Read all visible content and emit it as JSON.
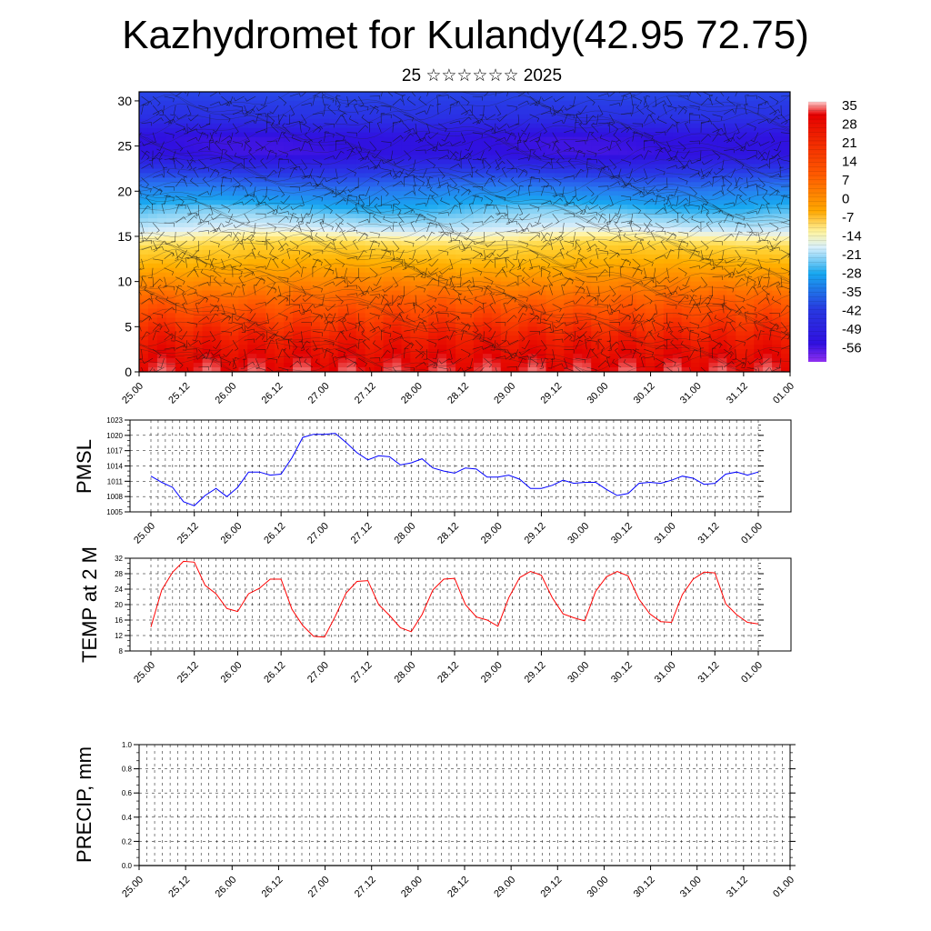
{
  "header": {
    "title": "Kazhydromet for Kulandy(42.95 72.75)",
    "subtitle": "25 ☆☆☆☆☆☆ 2025"
  },
  "time_labels": [
    "25.00",
    "25.12",
    "26.00",
    "26.12",
    "27.00",
    "27.12",
    "28.00",
    "28.12",
    "29.00",
    "29.12",
    "30.00",
    "30.12",
    "31.00",
    "31.12",
    "01.00"
  ],
  "chart_data": [
    {
      "type": "heatmap",
      "name": "cross-section",
      "x_range": [
        0,
        14
      ],
      "ylim": [
        0,
        31
      ],
      "yticks": [
        0,
        5,
        10,
        15,
        20,
        25,
        30
      ],
      "colorbar": {
        "labels": [
          "35",
          "28",
          "21",
          "14",
          "7",
          "0",
          "-7",
          "-14",
          "-21",
          "-28",
          "-35",
          "-42",
          "-49",
          "-56"
        ],
        "range": [
          -60,
          38
        ]
      },
      "profile": {
        "height": [
          0,
          2,
          5,
          8,
          10,
          12,
          14,
          15,
          16,
          18,
          20,
          22,
          24,
          26,
          28,
          31
        ],
        "temp": [
          30,
          26,
          20,
          14,
          9,
          3,
          -3,
          -8,
          -14,
          -22,
          -33,
          -45,
          -55,
          -55,
          -48,
          -43
        ]
      },
      "wind_barbs": true,
      "contour_lines": true
    },
    {
      "type": "line",
      "name": "pmsl",
      "ylabel": "PMSL",
      "ylim": [
        1005,
        1023
      ],
      "yticks": [
        1005,
        1008,
        1011,
        1014,
        1017,
        1020,
        1023
      ],
      "grid": true,
      "color": "#0000ff",
      "x": [
        0.0,
        0.25,
        0.5,
        0.75,
        1.0,
        1.25,
        1.5,
        1.75,
        2.0,
        2.25,
        2.5,
        2.75,
        3.0,
        3.25,
        3.5,
        3.75,
        4.0,
        4.25,
        4.5,
        4.75,
        5.0,
        5.25,
        5.5,
        5.75,
        6.0,
        6.25,
        6.5,
        6.75,
        7.0,
        7.25,
        7.5,
        7.75,
        8.0,
        8.25,
        8.5,
        8.75,
        9.0,
        9.25,
        9.5,
        9.75,
        10.0,
        10.25,
        10.5,
        10.75,
        11.0,
        11.25,
        11.5,
        11.75,
        12.0,
        12.25,
        12.5,
        12.75,
        13.0,
        13.25,
        13.5,
        13.75,
        14.0
      ],
      "values": [
        1012.0,
        1010.8,
        1009.8,
        1007.0,
        1006.2,
        1008.2,
        1009.6,
        1008.0,
        1009.8,
        1012.8,
        1012.8,
        1012.2,
        1012.4,
        1015.6,
        1019.6,
        1020.2,
        1020.2,
        1020.4,
        1018.6,
        1016.6,
        1015.2,
        1016.0,
        1015.8,
        1014.2,
        1014.6,
        1015.4,
        1013.6,
        1013.0,
        1012.6,
        1013.6,
        1013.4,
        1011.8,
        1011.8,
        1012.2,
        1011.4,
        1009.6,
        1009.6,
        1010.2,
        1011.2,
        1010.6,
        1010.8,
        1010.8,
        1009.4,
        1008.2,
        1008.6,
        1010.6,
        1010.8,
        1010.6,
        1011.2,
        1012.0,
        1011.6,
        1010.4,
        1010.6,
        1012.4,
        1012.8,
        1012.2,
        1012.8
      ]
    },
    {
      "type": "line",
      "name": "temp",
      "ylabel": "TEMP at 2 M",
      "ylim": [
        8,
        32
      ],
      "yticks": [
        8,
        12,
        16,
        20,
        24,
        28,
        32
      ],
      "grid": true,
      "color": "#ff0000",
      "x": [
        0.0,
        0.25,
        0.5,
        0.75,
        1.0,
        1.25,
        1.5,
        1.75,
        2.0,
        2.25,
        2.5,
        2.75,
        3.0,
        3.25,
        3.5,
        3.75,
        4.0,
        4.25,
        4.5,
        4.75,
        5.0,
        5.25,
        5.5,
        5.75,
        6.0,
        6.25,
        6.5,
        6.75,
        7.0,
        7.25,
        7.5,
        7.75,
        8.0,
        8.25,
        8.5,
        8.75,
        9.0,
        9.25,
        9.5,
        9.75,
        10.0,
        10.25,
        10.5,
        10.75,
        11.0,
        11.25,
        11.5,
        11.75,
        12.0,
        12.25,
        12.5,
        12.75,
        13.0,
        13.25,
        13.5,
        13.75,
        14.0
      ],
      "values": [
        14.2,
        23.8,
        28.4,
        31.2,
        31.0,
        25.0,
        22.8,
        19.0,
        18.2,
        22.8,
        24.2,
        26.6,
        26.6,
        18.8,
        14.6,
        11.8,
        11.6,
        17.0,
        23.0,
        26.0,
        26.2,
        20.0,
        17.2,
        14.0,
        13.0,
        17.4,
        23.8,
        26.6,
        26.8,
        20.0,
        16.8,
        16.0,
        14.4,
        21.8,
        27.0,
        28.6,
        27.6,
        21.8,
        17.6,
        16.6,
        15.8,
        23.4,
        27.2,
        28.6,
        27.4,
        21.4,
        17.6,
        15.6,
        15.4,
        22.6,
        26.6,
        28.4,
        28.2,
        20.2,
        17.4,
        15.4,
        15.0
      ]
    },
    {
      "type": "bar",
      "name": "precip",
      "ylabel": "PRECIP, mm",
      "ylim": [
        0.0,
        1.0
      ],
      "yticks": [
        "0.0",
        "0.2",
        "0.4",
        "0.6",
        "0.8",
        "1.0"
      ],
      "grid": true,
      "values": []
    }
  ]
}
